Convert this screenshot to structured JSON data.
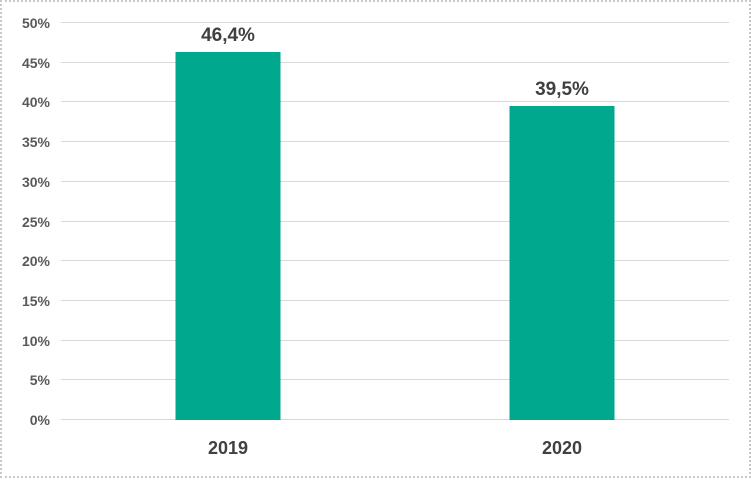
{
  "chart_data": {
    "type": "bar",
    "categories": [
      "2019",
      "2020"
    ],
    "values": [
      46.4,
      39.5
    ],
    "data_labels": [
      "46,4%",
      "39,5%"
    ],
    "title": "",
    "xlabel": "",
    "ylabel": "",
    "ylim": [
      0,
      50
    ],
    "ytick_step": 5,
    "yticks": [
      {
        "value": 0,
        "label": "0%"
      },
      {
        "value": 5,
        "label": "5%"
      },
      {
        "value": 10,
        "label": "10%"
      },
      {
        "value": 15,
        "label": "15%"
      },
      {
        "value": 20,
        "label": "20%"
      },
      {
        "value": 25,
        "label": "25%"
      },
      {
        "value": 30,
        "label": "30%"
      },
      {
        "value": 35,
        "label": "35%"
      },
      {
        "value": 40,
        "label": "40%"
      },
      {
        "value": 45,
        "label": "45%"
      },
      {
        "value": 50,
        "label": "50%"
      }
    ],
    "grid": "horizontal",
    "legend": "none",
    "colors": {
      "bar": "#00a88d",
      "gridline": "#d9d9d9",
      "axis_tick_label": "#595959",
      "data_label": "#404040",
      "category_label": "#404040",
      "border": "#c9c9c9",
      "background": "#ffffff"
    }
  }
}
